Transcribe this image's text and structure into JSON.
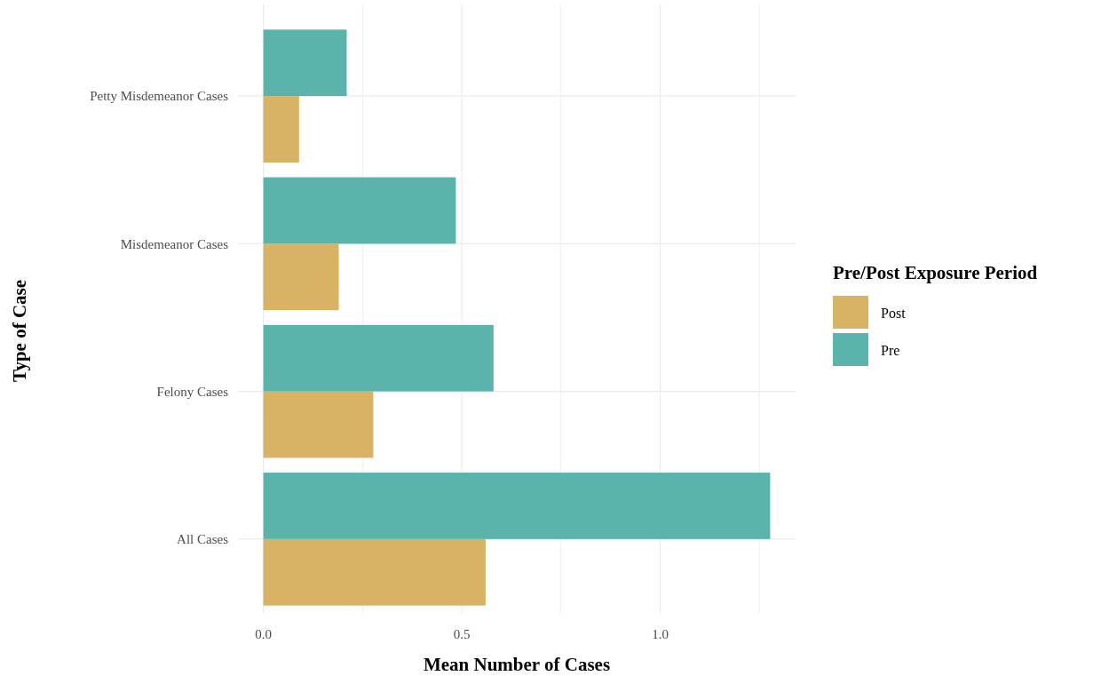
{
  "chart_data": {
    "type": "bar",
    "orientation": "horizontal",
    "xlabel": "Mean Number of Cases",
    "ylabel": "Type of Case",
    "legend_title": "Pre/Post Exposure Period",
    "categories": [
      "Petty Misdemeanor Cases",
      "Misdemeanor Cases",
      "Felony Cases",
      "All Cases"
    ],
    "series": [
      {
        "name": "Post",
        "color": "#d8b365",
        "values": [
          0.09,
          0.19,
          0.277,
          0.56
        ]
      },
      {
        "name": "Pre",
        "color": "#5ab4ac",
        "values": [
          0.21,
          0.485,
          0.58,
          1.277
        ]
      }
    ],
    "xlim": [
      -0.064,
      1.341
    ],
    "xticks": [
      {
        "value": 0,
        "label": "0.0"
      },
      {
        "value": 0.25,
        "label": null
      },
      {
        "value": 0.5,
        "label": "0.5"
      },
      {
        "value": 0.75,
        "label": null
      },
      {
        "value": 1,
        "label": "1.0"
      },
      {
        "value": 1.25,
        "label": null
      }
    ],
    "grid": true,
    "legend": "right"
  }
}
